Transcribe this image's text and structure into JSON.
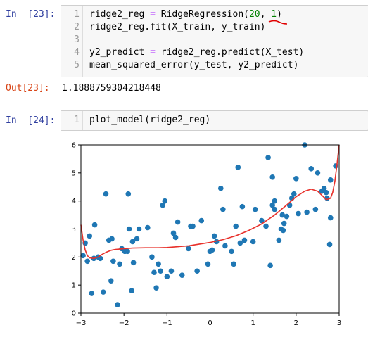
{
  "cells": [
    {
      "prompt": "In  [23]:",
      "lines": [
        {
          "n": "1",
          "parts": [
            [
              "ridge2_reg ",
              ""
            ],
            [
              "=",
              "op"
            ],
            [
              " RidgeRegression(",
              ""
            ],
            [
              "20",
              "num"
            ],
            [
              ", ",
              ""
            ],
            [
              "1",
              "num"
            ],
            [
              ")",
              ""
            ]
          ]
        },
        {
          "n": "2",
          "parts": [
            [
              "ridge2_reg.fit(X_train, y_train)",
              ""
            ]
          ]
        },
        {
          "n": "3",
          "parts": []
        },
        {
          "n": "4",
          "parts": [
            [
              "y2_predict ",
              ""
            ],
            [
              "=",
              "op"
            ],
            [
              " ridge2_reg.predict(X_test)",
              ""
            ]
          ]
        },
        {
          "n": "5",
          "parts": [
            [
              "mean_squared_error(y_test, y2_predict)",
              ""
            ]
          ]
        }
      ]
    },
    {
      "prompt": "In  [24]:",
      "lines": [
        {
          "n": "1",
          "parts": [
            [
              "plot_model(ridge2_reg)",
              ""
            ]
          ]
        }
      ]
    }
  ],
  "output": {
    "prompt": "Out[23]:",
    "value": "1.1888759304218448"
  },
  "colors": {
    "scatter": "#1f77b4",
    "line": "#e8302a",
    "annotation": "#e00000"
  },
  "chart_data": {
    "type": "scatter",
    "xlim": [
      -3,
      3
    ],
    "ylim": [
      0,
      6
    ],
    "xticks": [
      "−3",
      "−2",
      "−1",
      "0",
      "1",
      "2",
      "3"
    ],
    "yticks": [
      "0",
      "1",
      "2",
      "3",
      "4",
      "5",
      "6"
    ],
    "grid": false,
    "points": [
      [
        -2.95,
        2.05
      ],
      [
        -2.9,
        2.5
      ],
      [
        -2.85,
        1.85
      ],
      [
        -2.8,
        2.75
      ],
      [
        -2.75,
        0.7
      ],
      [
        -2.7,
        1.95
      ],
      [
        -2.68,
        3.15
      ],
      [
        -2.6,
        2.0
      ],
      [
        -2.55,
        1.95
      ],
      [
        -2.48,
        0.75
      ],
      [
        -2.42,
        4.25
      ],
      [
        -2.35,
        2.6
      ],
      [
        -2.3,
        1.15
      ],
      [
        -2.28,
        2.65
      ],
      [
        -2.25,
        1.85
      ],
      [
        -2.15,
        0.3
      ],
      [
        -2.1,
        1.75
      ],
      [
        -2.05,
        2.3
      ],
      [
        -1.98,
        2.2
      ],
      [
        -1.92,
        2.2
      ],
      [
        -1.9,
        4.25
      ],
      [
        -1.88,
        3.0
      ],
      [
        -1.82,
        0.8
      ],
      [
        -1.78,
        1.8
      ],
      [
        -1.8,
        2.55
      ],
      [
        -1.7,
        2.65
      ],
      [
        -1.65,
        3.0
      ],
      [
        -1.45,
        3.05
      ],
      [
        -1.35,
        2.0
      ],
      [
        -1.3,
        1.45
      ],
      [
        -1.25,
        0.9
      ],
      [
        -1.2,
        1.75
      ],
      [
        -1.15,
        1.5
      ],
      [
        -1.1,
        3.85
      ],
      [
        -1.05,
        4.0
      ],
      [
        -1.0,
        1.3
      ],
      [
        -0.9,
        1.5
      ],
      [
        -0.85,
        2.85
      ],
      [
        -0.8,
        2.7
      ],
      [
        -0.75,
        3.25
      ],
      [
        -0.65,
        1.35
      ],
      [
        -0.5,
        2.3
      ],
      [
        -0.45,
        3.1
      ],
      [
        -0.4,
        3.1
      ],
      [
        -0.3,
        1.5
      ],
      [
        -0.2,
        3.3
      ],
      [
        -0.05,
        1.75
      ],
      [
        0.0,
        2.2
      ],
      [
        0.05,
        2.25
      ],
      [
        0.1,
        2.75
      ],
      [
        0.15,
        2.55
      ],
      [
        0.25,
        4.45
      ],
      [
        0.3,
        3.7
      ],
      [
        0.35,
        2.4
      ],
      [
        0.5,
        2.2
      ],
      [
        0.55,
        1.75
      ],
      [
        0.6,
        3.1
      ],
      [
        0.65,
        5.2
      ],
      [
        0.7,
        2.5
      ],
      [
        0.75,
        3.8
      ],
      [
        0.8,
        2.6
      ],
      [
        1.0,
        2.55
      ],
      [
        1.05,
        3.7
      ],
      [
        1.2,
        3.3
      ],
      [
        1.3,
        3.1
      ],
      [
        1.35,
        5.55
      ],
      [
        1.4,
        1.7
      ],
      [
        1.45,
        4.85
      ],
      [
        1.45,
        3.85
      ],
      [
        1.5,
        4.0
      ],
      [
        1.5,
        3.7
      ],
      [
        1.6,
        2.6
      ],
      [
        1.65,
        3.0
      ],
      [
        1.68,
        3.5
      ],
      [
        1.7,
        2.95
      ],
      [
        1.72,
        3.2
      ],
      [
        1.78,
        3.45
      ],
      [
        1.85,
        3.85
      ],
      [
        1.9,
        4.1
      ],
      [
        1.95,
        4.25
      ],
      [
        2.0,
        4.8
      ],
      [
        2.05,
        3.55
      ],
      [
        2.2,
        6.0
      ],
      [
        2.25,
        3.6
      ],
      [
        2.35,
        5.15
      ],
      [
        2.45,
        3.7
      ],
      [
        2.5,
        5.0
      ],
      [
        2.6,
        4.35
      ],
      [
        2.65,
        4.45
      ],
      [
        2.7,
        4.3
      ],
      [
        2.72,
        4.1
      ],
      [
        2.78,
        2.45
      ],
      [
        2.8,
        3.4
      ],
      [
        2.8,
        4.75
      ],
      [
        2.92,
        5.25
      ]
    ],
    "line": [
      [
        -3.0,
        3.15
      ],
      [
        -2.95,
        2.6
      ],
      [
        -2.9,
        2.25
      ],
      [
        -2.85,
        2.05
      ],
      [
        -2.8,
        1.97
      ],
      [
        -2.7,
        1.95
      ],
      [
        -2.6,
        2.0
      ],
      [
        -2.5,
        2.1
      ],
      [
        -2.4,
        2.18
      ],
      [
        -2.3,
        2.24
      ],
      [
        -2.2,
        2.27
      ],
      [
        -2.0,
        2.3
      ],
      [
        -1.8,
        2.32
      ],
      [
        -1.5,
        2.33
      ],
      [
        -1.2,
        2.33
      ],
      [
        -1.0,
        2.34
      ],
      [
        -0.5,
        2.4
      ],
      [
        0.0,
        2.52
      ],
      [
        0.3,
        2.62
      ],
      [
        0.6,
        2.76
      ],
      [
        0.9,
        2.95
      ],
      [
        1.2,
        3.18
      ],
      [
        1.5,
        3.5
      ],
      [
        1.8,
        3.88
      ],
      [
        2.0,
        4.15
      ],
      [
        2.2,
        4.35
      ],
      [
        2.35,
        4.42
      ],
      [
        2.5,
        4.35
      ],
      [
        2.6,
        4.2
      ],
      [
        2.7,
        4.05
      ],
      [
        2.8,
        4.1
      ],
      [
        2.85,
        4.3
      ],
      [
        2.9,
        4.7
      ],
      [
        2.95,
        5.3
      ],
      [
        3.0,
        6.0
      ]
    ]
  }
}
